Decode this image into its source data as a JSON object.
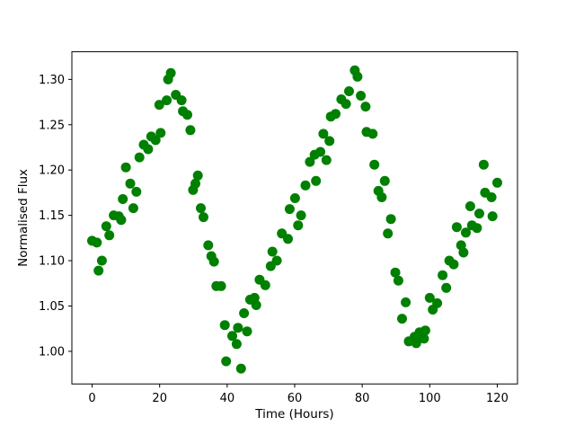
{
  "figure": {
    "background": "#ffffff",
    "axis_color": "#000000",
    "marker_color": "#008000"
  },
  "chart_data": {
    "type": "scatter",
    "title": "",
    "xlabel": "Time (Hours)",
    "ylabel": "Normalised Flux",
    "x_ticks": [
      "0",
      "20",
      "40",
      "60",
      "80",
      "100",
      "120"
    ],
    "y_ticks": [
      "1.00",
      "1.05",
      "1.10",
      "1.15",
      "1.20",
      "1.25",
      "1.30"
    ],
    "xlim": [
      -6,
      126
    ],
    "ylim": [
      0.964,
      1.3305
    ],
    "grid": false,
    "legend": false,
    "marker": "circle",
    "marker_radius_px": 5.5,
    "series": [
      {
        "name": "normalised-flux",
        "color": "#008000",
        "points": [
          [
            0.0,
            1.122
          ],
          [
            1.4,
            1.12
          ],
          [
            1.9,
            1.089
          ],
          [
            2.9,
            1.1
          ],
          [
            4.2,
            1.138
          ],
          [
            5.1,
            1.128
          ],
          [
            6.4,
            1.15
          ],
          [
            7.9,
            1.149
          ],
          [
            8.6,
            1.145
          ],
          [
            9.1,
            1.168
          ],
          [
            10.0,
            1.203
          ],
          [
            11.3,
            1.185
          ],
          [
            12.2,
            1.158
          ],
          [
            13.1,
            1.176
          ],
          [
            14.0,
            1.214
          ],
          [
            15.3,
            1.228
          ],
          [
            16.6,
            1.223
          ],
          [
            17.5,
            1.237
          ],
          [
            18.8,
            1.233
          ],
          [
            19.9,
            1.272
          ],
          [
            20.3,
            1.241
          ],
          [
            22.1,
            1.277
          ],
          [
            22.5,
            1.3
          ],
          [
            23.3,
            1.307
          ],
          [
            24.8,
            1.283
          ],
          [
            26.5,
            1.277
          ],
          [
            26.9,
            1.265
          ],
          [
            28.2,
            1.261
          ],
          [
            29.1,
            1.244
          ],
          [
            29.9,
            1.178
          ],
          [
            30.6,
            1.185
          ],
          [
            31.3,
            1.194
          ],
          [
            32.2,
            1.158
          ],
          [
            33.0,
            1.148
          ],
          [
            34.4,
            1.117
          ],
          [
            35.3,
            1.105
          ],
          [
            36.1,
            1.099
          ],
          [
            36.8,
            1.072
          ],
          [
            38.2,
            1.072
          ],
          [
            39.3,
            1.029
          ],
          [
            39.7,
            0.989
          ],
          [
            41.5,
            1.017
          ],
          [
            42.8,
            1.008
          ],
          [
            43.2,
            1.026
          ],
          [
            44.1,
            0.981
          ],
          [
            45.0,
            1.042
          ],
          [
            45.9,
            1.022
          ],
          [
            46.8,
            1.057
          ],
          [
            48.1,
            1.059
          ],
          [
            48.6,
            1.051
          ],
          [
            49.6,
            1.079
          ],
          [
            51.3,
            1.073
          ],
          [
            52.9,
            1.094
          ],
          [
            53.4,
            1.11
          ],
          [
            54.7,
            1.1
          ],
          [
            56.2,
            1.13
          ],
          [
            58.0,
            1.124
          ],
          [
            58.5,
            1.157
          ],
          [
            60.1,
            1.169
          ],
          [
            61.0,
            1.139
          ],
          [
            61.9,
            1.15
          ],
          [
            63.2,
            1.183
          ],
          [
            64.5,
            1.209
          ],
          [
            65.9,
            1.217
          ],
          [
            66.3,
            1.188
          ],
          [
            67.6,
            1.22
          ],
          [
            68.5,
            1.24
          ],
          [
            69.4,
            1.211
          ],
          [
            70.3,
            1.232
          ],
          [
            70.7,
            1.259
          ],
          [
            72.1,
            1.262
          ],
          [
            73.8,
            1.278
          ],
          [
            75.2,
            1.273
          ],
          [
            76.1,
            1.287
          ],
          [
            77.8,
            1.31
          ],
          [
            78.6,
            1.303
          ],
          [
            79.6,
            1.282
          ],
          [
            81.0,
            1.27
          ],
          [
            81.3,
            1.242
          ],
          [
            83.1,
            1.24
          ],
          [
            83.6,
            1.206
          ],
          [
            84.8,
            1.177
          ],
          [
            85.8,
            1.17
          ],
          [
            86.7,
            1.188
          ],
          [
            87.6,
            1.13
          ],
          [
            88.5,
            1.146
          ],
          [
            89.8,
            1.087
          ],
          [
            90.7,
            1.078
          ],
          [
            91.8,
            1.036
          ],
          [
            92.9,
            1.054
          ],
          [
            93.8,
            1.011
          ],
          [
            95.5,
            1.016
          ],
          [
            96.0,
            1.009
          ],
          [
            97.0,
            1.021
          ],
          [
            98.3,
            1.014
          ],
          [
            98.7,
            1.023
          ],
          [
            100.0,
            1.059
          ],
          [
            100.9,
            1.046
          ],
          [
            102.2,
            1.053
          ],
          [
            103.8,
            1.084
          ],
          [
            104.9,
            1.07
          ],
          [
            105.8,
            1.1
          ],
          [
            107.1,
            1.096
          ],
          [
            108.0,
            1.137
          ],
          [
            109.3,
            1.117
          ],
          [
            110.0,
            1.109
          ],
          [
            110.7,
            1.131
          ],
          [
            112.0,
            1.16
          ],
          [
            112.5,
            1.139
          ],
          [
            114.0,
            1.136
          ],
          [
            114.7,
            1.152
          ],
          [
            116.0,
            1.206
          ],
          [
            116.4,
            1.175
          ],
          [
            118.3,
            1.17
          ],
          [
            118.6,
            1.149
          ],
          [
            120.0,
            1.186
          ]
        ]
      }
    ]
  }
}
